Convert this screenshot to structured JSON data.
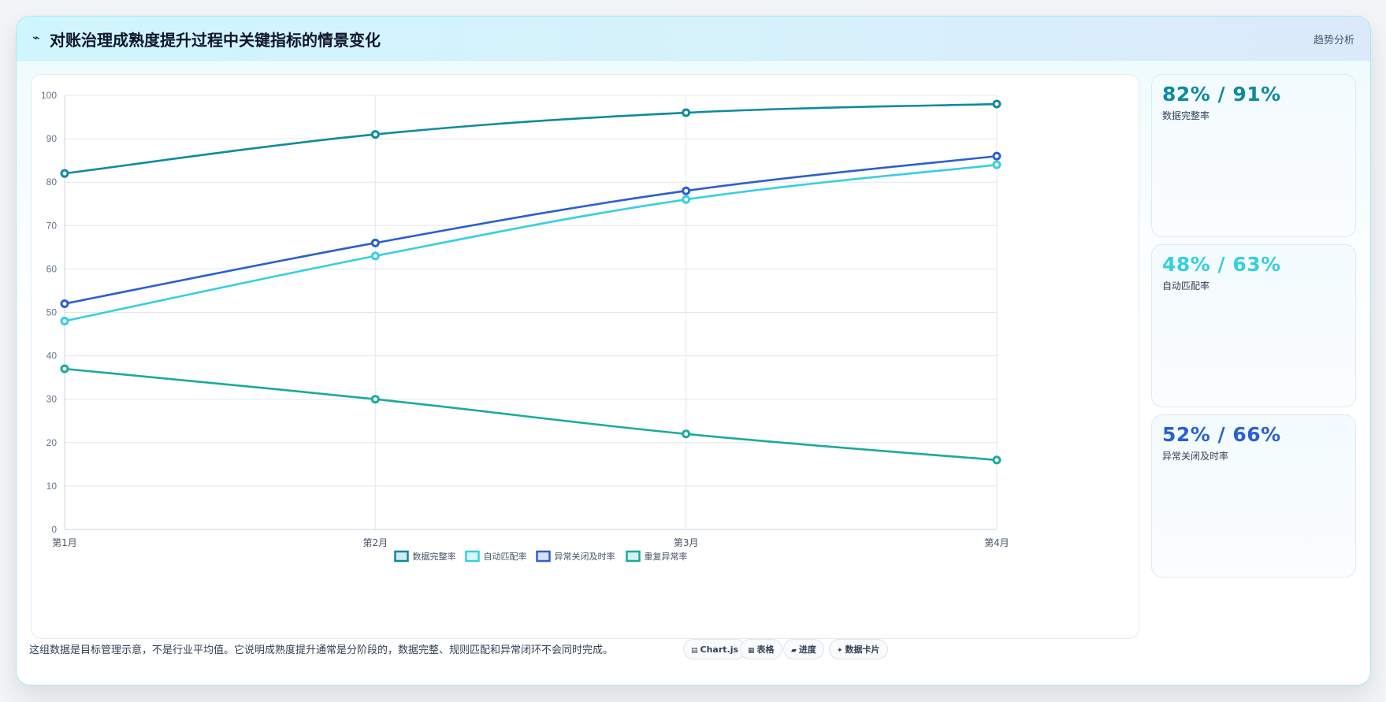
{
  "header": {
    "icon": "⌁",
    "title": "对账治理成熟度提升过程中关键指标的情景变化",
    "tag": "趋势分析"
  },
  "colors": {
    "completeness": "#0e8aa0",
    "auto_match": "#36cfe0",
    "close_rate": "#2b5fd1",
    "repeat": "#1aab9b"
  },
  "chart_data": {
    "type": "line",
    "categories": [
      "第1月",
      "第2月",
      "第3月",
      "第4月"
    ],
    "ylim": [
      0,
      100
    ],
    "yticks": [
      0,
      10,
      20,
      30,
      40,
      50,
      60,
      70,
      80,
      90,
      100
    ],
    "grid": true,
    "legend_position": "bottom",
    "series": [
      {
        "name": "数据完整率",
        "values": [
          82,
          91,
          96,
          98
        ],
        "color": "#0e8aa0"
      },
      {
        "name": "自动匹配率",
        "values": [
          48,
          63,
          76,
          84
        ],
        "color": "#36cfe0"
      },
      {
        "name": "异常关闭及时率",
        "values": [
          52,
          66,
          78,
          86
        ],
        "color": "#2b5fd1"
      },
      {
        "name": "重复异常率",
        "values": [
          37,
          30,
          22,
          16
        ],
        "color": "#1aab9b"
      }
    ]
  },
  "side_cards": [
    {
      "value": "82% / 91%",
      "label": "数据完整率",
      "color": "#0e8aa0"
    },
    {
      "value": "48% / 63%",
      "label": "自动匹配率",
      "color": "#36cfe0"
    },
    {
      "value": "52% / 66%",
      "label": "异常关闭及时率",
      "color": "#2b5fd1"
    }
  ],
  "footnote": "这组数据是目标管理示意，不是行业平均值。它说明成熟度提升通常是分阶段的，数据完整、规则匹配和异常闭环不会同时完成。",
  "toolbar": [
    {
      "icon": "▤",
      "label": "Chart.js"
    },
    {
      "icon": "▦",
      "label": "表格"
    },
    {
      "icon": "▰",
      "label": "进度"
    },
    {
      "icon": "✦",
      "label": "数据卡片"
    }
  ]
}
